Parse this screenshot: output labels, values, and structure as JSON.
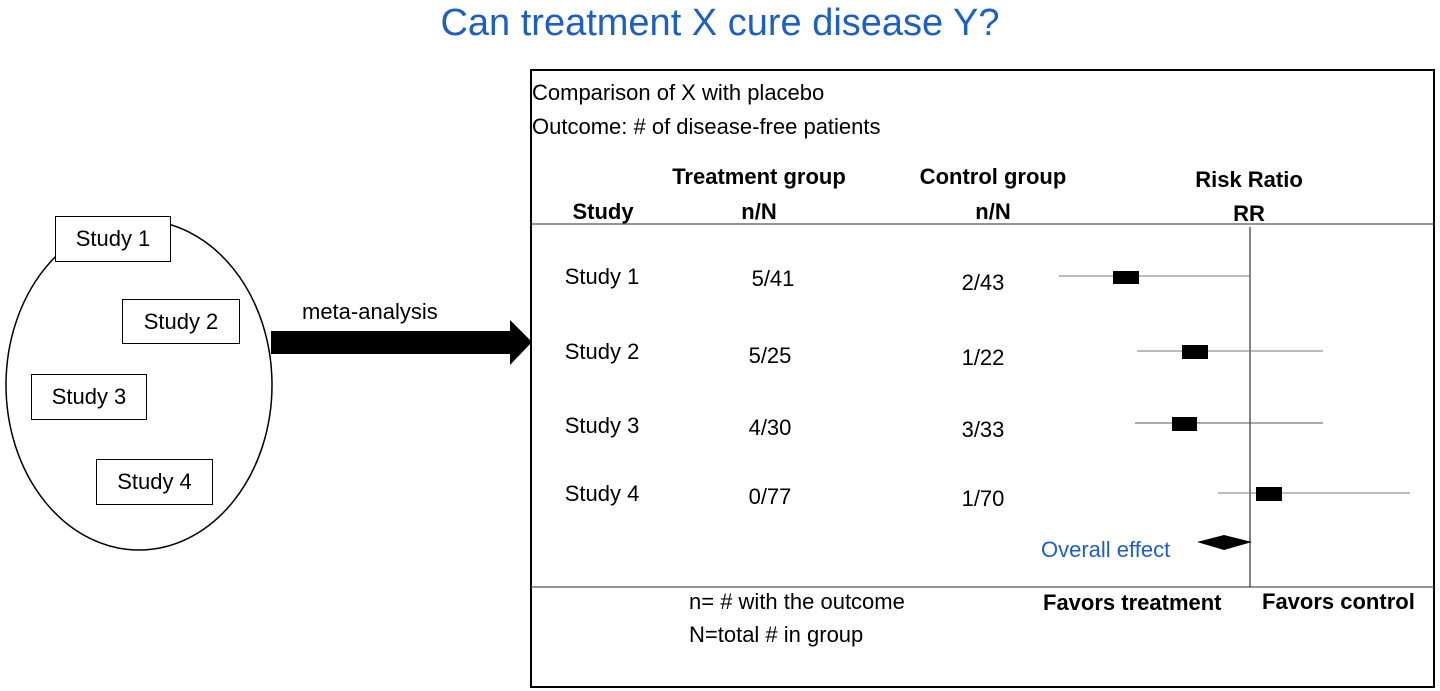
{
  "title": "Can treatment X cure disease Y?",
  "left": {
    "studies": [
      "Study 1",
      "Study 2",
      "Study 3",
      "Study 4"
    ],
    "arrow_label": "meta-analysis"
  },
  "panel": {
    "comparison": "Comparison of X with placebo",
    "outcome": "Outcome: # of disease-free patients",
    "headers": {
      "study": "Study",
      "treatment": "Treatment group",
      "treatment_sub": "n/N",
      "control": "Control group",
      "control_sub": "n/N",
      "rr": "Risk Ratio",
      "rr_sub": "RR"
    },
    "rows": [
      {
        "study": "Study 1",
        "treatment": "5/41",
        "control": "2/43"
      },
      {
        "study": "Study 2",
        "treatment": "5/25",
        "control": "1/22"
      },
      {
        "study": "Study 3",
        "treatment": "4/30",
        "control": "3/33"
      },
      {
        "study": "Study 4",
        "treatment": "0/77",
        "control": "1/70"
      }
    ],
    "overall": "Overall effect",
    "favors_treatment": "Favors treatment",
    "favors_control": "Favors control",
    "note_n": "n= # with the outcome",
    "note_N": "N=total # in group"
  },
  "colors": {
    "accent": "#1f5fbf"
  }
}
